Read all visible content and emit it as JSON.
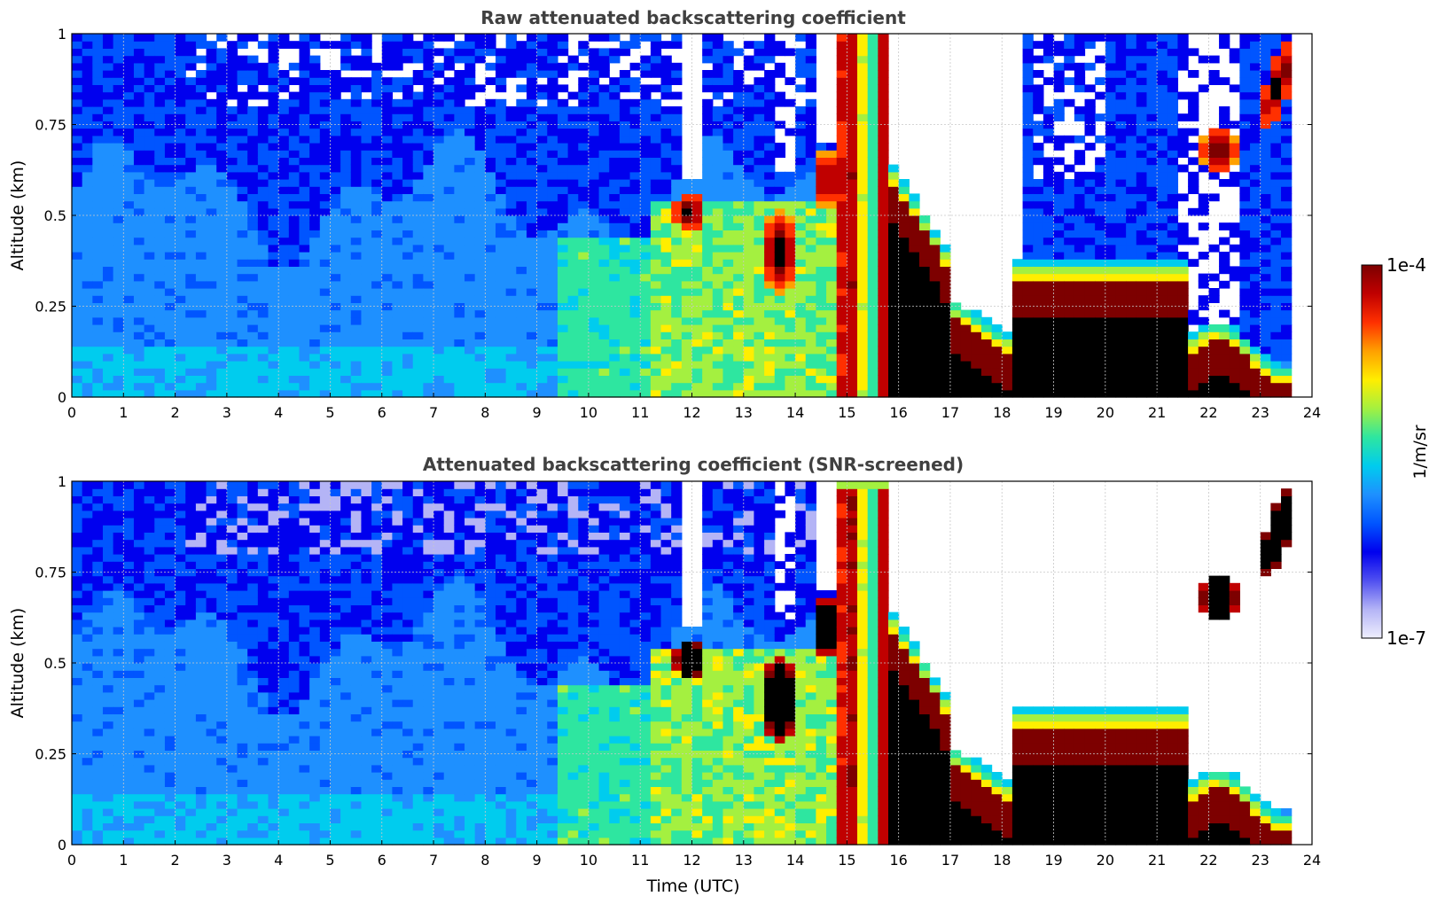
{
  "figure": {
    "colorbar": {
      "label": "1/m/sr",
      "max_label": "1e-4",
      "min_label": "1e-7",
      "scale": "log",
      "range": [
        1e-07,
        0.0001
      ],
      "colormap": [
        "#eeeefd",
        "#b4b4f6",
        "#5050f0",
        "#0000ee",
        "#0055ff",
        "#1e90ff",
        "#00ccee",
        "#2ee6a0",
        "#a4f040",
        "#ffee00",
        "#ffa000",
        "#ff3000",
        "#c00000",
        "#7d0000"
      ]
    },
    "xlabel": "Time (UTC)"
  },
  "chart_data": [
    {
      "type": "heatmap",
      "title": "Raw attenuated backscattering coefficient",
      "xlabel": "",
      "ylabel": "Altitude (km)",
      "xlim": [
        0,
        24
      ],
      "ylim": [
        0,
        1
      ],
      "xticks": [
        "0",
        "1",
        "2",
        "3",
        "4",
        "5",
        "6",
        "7",
        "8",
        "9",
        "10",
        "11",
        "12",
        "13",
        "14",
        "15",
        "16",
        "17",
        "18",
        "19",
        "20",
        "21",
        "22",
        "23",
        "24"
      ],
      "yticks": [
        "0",
        "0.25",
        "0.5",
        "0.75",
        "1"
      ],
      "grid": true,
      "features": [
        {
          "t0": 0,
          "t1": 11,
          "z0": 0,
          "z1": 0.55,
          "level": "~1e-6"
        },
        {
          "t0": 11.6,
          "t1": 12.3,
          "z0": 0.45,
          "z1": 0.58,
          "level": "~1e-4"
        },
        {
          "t0": 13.4,
          "t1": 14.0,
          "z0": 0.3,
          "z1": 0.5,
          "level": "~1e-4"
        },
        {
          "t0": 14.8,
          "t1": 15.8,
          "z0": 0,
          "z1": 1,
          "level": "~1e-4"
        },
        {
          "t0": 16.3,
          "t1": 23.7,
          "z0": 0,
          "z1": 0.33,
          "level": "~1e-4"
        },
        {
          "t0": 21.9,
          "t1": 22.5,
          "z0": 0.6,
          "z1": 0.75,
          "level": "~1e-4"
        },
        {
          "t0": 23.0,
          "t1": 23.7,
          "z0": 0.8,
          "z1": 1,
          "level": "~1e-4"
        }
      ]
    },
    {
      "type": "heatmap",
      "title": "Attenuated backscattering coefficient (SNR-screened)",
      "xlabel": "Time (UTC)",
      "ylabel": "Altitude (km)",
      "xlim": [
        0,
        24
      ],
      "ylim": [
        0,
        1
      ],
      "xticks": [
        "0",
        "1",
        "2",
        "3",
        "4",
        "5",
        "6",
        "7",
        "8",
        "9",
        "10",
        "11",
        "12",
        "13",
        "14",
        "15",
        "16",
        "17",
        "18",
        "19",
        "20",
        "21",
        "22",
        "23",
        "24"
      ],
      "yticks": [
        "0",
        "0.25",
        "0.5",
        "0.75",
        "1"
      ],
      "grid": true,
      "features": [
        {
          "t0": 0,
          "t1": 11,
          "z0": 0,
          "z1": 0.55,
          "level": "~1e-6"
        },
        {
          "t0": 11.6,
          "t1": 12.3,
          "z0": 0.45,
          "z1": 0.58,
          "level": "> 1e-4 (black)"
        },
        {
          "t0": 13.4,
          "t1": 14.0,
          "z0": 0.3,
          "z1": 0.5,
          "level": "> 1e-4 (black)"
        },
        {
          "t0": 16.3,
          "t1": 23.7,
          "z0": 0,
          "z1": 0.33,
          "level": "> 1e-4 (black)"
        },
        {
          "t0": 21.9,
          "t1": 22.5,
          "z0": 0.6,
          "z1": 0.75,
          "level": "~1e-4"
        },
        {
          "t0": 23.0,
          "t1": 23.7,
          "z0": 0.8,
          "z1": 1,
          "level": "> 1e-4 (black)"
        }
      ]
    }
  ]
}
